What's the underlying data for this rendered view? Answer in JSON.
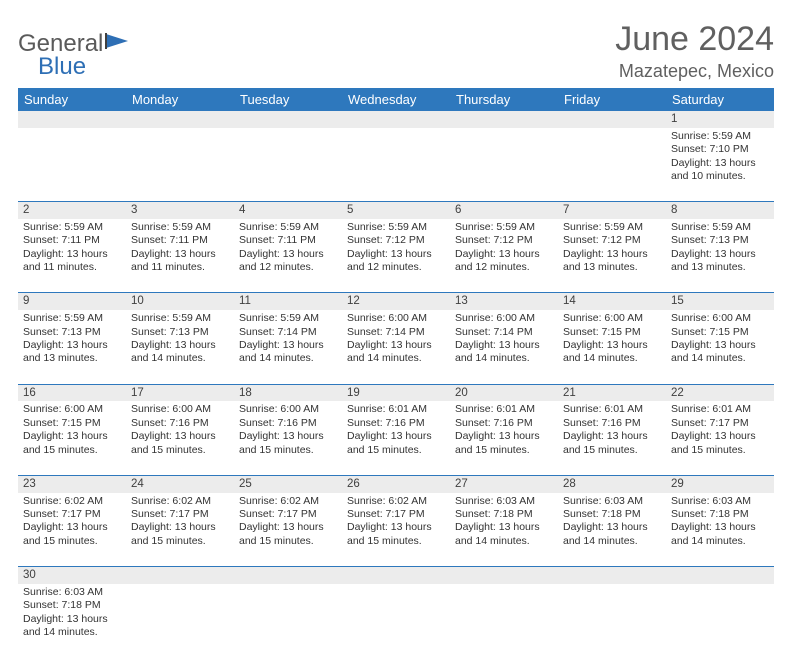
{
  "brand": {
    "text1": "General",
    "text2": "Blue"
  },
  "title": "June 2024",
  "location": "Mazatepec, Mexico",
  "colors": {
    "header_bg": "#2e78bd",
    "header_fg": "#ffffff",
    "daynum_bg": "#ececec",
    "rule": "#2e78bd",
    "text": "#333333",
    "title": "#606060"
  },
  "weekdays": [
    "Sunday",
    "Monday",
    "Tuesday",
    "Wednesday",
    "Thursday",
    "Friday",
    "Saturday"
  ],
  "weeks": [
    [
      null,
      null,
      null,
      null,
      null,
      null,
      {
        "n": "1",
        "sr": "Sunrise: 5:59 AM",
        "ss": "Sunset: 7:10 PM",
        "dl": "Daylight: 13 hours and 10 minutes."
      }
    ],
    [
      {
        "n": "2",
        "sr": "Sunrise: 5:59 AM",
        "ss": "Sunset: 7:11 PM",
        "dl": "Daylight: 13 hours and 11 minutes."
      },
      {
        "n": "3",
        "sr": "Sunrise: 5:59 AM",
        "ss": "Sunset: 7:11 PM",
        "dl": "Daylight: 13 hours and 11 minutes."
      },
      {
        "n": "4",
        "sr": "Sunrise: 5:59 AM",
        "ss": "Sunset: 7:11 PM",
        "dl": "Daylight: 13 hours and 12 minutes."
      },
      {
        "n": "5",
        "sr": "Sunrise: 5:59 AM",
        "ss": "Sunset: 7:12 PM",
        "dl": "Daylight: 13 hours and 12 minutes."
      },
      {
        "n": "6",
        "sr": "Sunrise: 5:59 AM",
        "ss": "Sunset: 7:12 PM",
        "dl": "Daylight: 13 hours and 12 minutes."
      },
      {
        "n": "7",
        "sr": "Sunrise: 5:59 AM",
        "ss": "Sunset: 7:12 PM",
        "dl": "Daylight: 13 hours and 13 minutes."
      },
      {
        "n": "8",
        "sr": "Sunrise: 5:59 AM",
        "ss": "Sunset: 7:13 PM",
        "dl": "Daylight: 13 hours and 13 minutes."
      }
    ],
    [
      {
        "n": "9",
        "sr": "Sunrise: 5:59 AM",
        "ss": "Sunset: 7:13 PM",
        "dl": "Daylight: 13 hours and 13 minutes."
      },
      {
        "n": "10",
        "sr": "Sunrise: 5:59 AM",
        "ss": "Sunset: 7:13 PM",
        "dl": "Daylight: 13 hours and 14 minutes."
      },
      {
        "n": "11",
        "sr": "Sunrise: 5:59 AM",
        "ss": "Sunset: 7:14 PM",
        "dl": "Daylight: 13 hours and 14 minutes."
      },
      {
        "n": "12",
        "sr": "Sunrise: 6:00 AM",
        "ss": "Sunset: 7:14 PM",
        "dl": "Daylight: 13 hours and 14 minutes."
      },
      {
        "n": "13",
        "sr": "Sunrise: 6:00 AM",
        "ss": "Sunset: 7:14 PM",
        "dl": "Daylight: 13 hours and 14 minutes."
      },
      {
        "n": "14",
        "sr": "Sunrise: 6:00 AM",
        "ss": "Sunset: 7:15 PM",
        "dl": "Daylight: 13 hours and 14 minutes."
      },
      {
        "n": "15",
        "sr": "Sunrise: 6:00 AM",
        "ss": "Sunset: 7:15 PM",
        "dl": "Daylight: 13 hours and 14 minutes."
      }
    ],
    [
      {
        "n": "16",
        "sr": "Sunrise: 6:00 AM",
        "ss": "Sunset: 7:15 PM",
        "dl": "Daylight: 13 hours and 15 minutes."
      },
      {
        "n": "17",
        "sr": "Sunrise: 6:00 AM",
        "ss": "Sunset: 7:16 PM",
        "dl": "Daylight: 13 hours and 15 minutes."
      },
      {
        "n": "18",
        "sr": "Sunrise: 6:00 AM",
        "ss": "Sunset: 7:16 PM",
        "dl": "Daylight: 13 hours and 15 minutes."
      },
      {
        "n": "19",
        "sr": "Sunrise: 6:01 AM",
        "ss": "Sunset: 7:16 PM",
        "dl": "Daylight: 13 hours and 15 minutes."
      },
      {
        "n": "20",
        "sr": "Sunrise: 6:01 AM",
        "ss": "Sunset: 7:16 PM",
        "dl": "Daylight: 13 hours and 15 minutes."
      },
      {
        "n": "21",
        "sr": "Sunrise: 6:01 AM",
        "ss": "Sunset: 7:16 PM",
        "dl": "Daylight: 13 hours and 15 minutes."
      },
      {
        "n": "22",
        "sr": "Sunrise: 6:01 AM",
        "ss": "Sunset: 7:17 PM",
        "dl": "Daylight: 13 hours and 15 minutes."
      }
    ],
    [
      {
        "n": "23",
        "sr": "Sunrise: 6:02 AM",
        "ss": "Sunset: 7:17 PM",
        "dl": "Daylight: 13 hours and 15 minutes."
      },
      {
        "n": "24",
        "sr": "Sunrise: 6:02 AM",
        "ss": "Sunset: 7:17 PM",
        "dl": "Daylight: 13 hours and 15 minutes."
      },
      {
        "n": "25",
        "sr": "Sunrise: 6:02 AM",
        "ss": "Sunset: 7:17 PM",
        "dl": "Daylight: 13 hours and 15 minutes."
      },
      {
        "n": "26",
        "sr": "Sunrise: 6:02 AM",
        "ss": "Sunset: 7:17 PM",
        "dl": "Daylight: 13 hours and 15 minutes."
      },
      {
        "n": "27",
        "sr": "Sunrise: 6:03 AM",
        "ss": "Sunset: 7:18 PM",
        "dl": "Daylight: 13 hours and 14 minutes."
      },
      {
        "n": "28",
        "sr": "Sunrise: 6:03 AM",
        "ss": "Sunset: 7:18 PM",
        "dl": "Daylight: 13 hours and 14 minutes."
      },
      {
        "n": "29",
        "sr": "Sunrise: 6:03 AM",
        "ss": "Sunset: 7:18 PM",
        "dl": "Daylight: 13 hours and 14 minutes."
      }
    ],
    [
      {
        "n": "30",
        "sr": "Sunrise: 6:03 AM",
        "ss": "Sunset: 7:18 PM",
        "dl": "Daylight: 13 hours and 14 minutes."
      },
      null,
      null,
      null,
      null,
      null,
      null
    ]
  ]
}
